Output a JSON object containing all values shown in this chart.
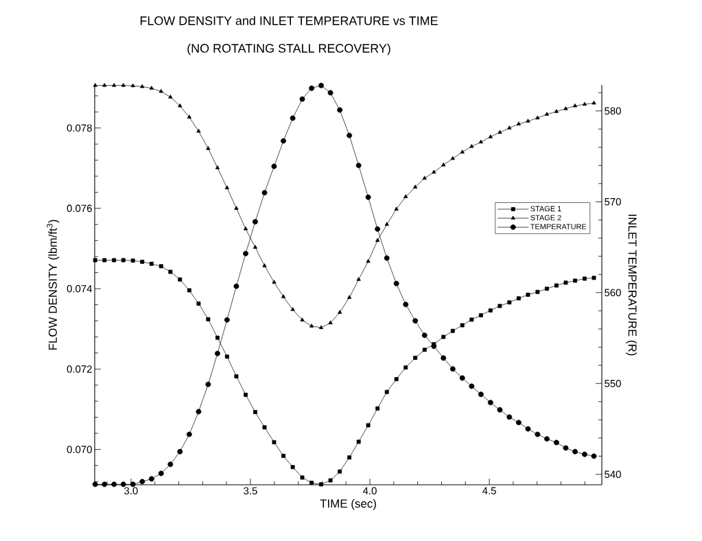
{
  "chart_data": {
    "type": "line",
    "title": "FLOW DENSITY and INLET TEMPERATURE vs TIME",
    "subtitle": "(NO ROTATING STALL RECOVERY)",
    "xlabel": "TIME (sec)",
    "ylabel": "FLOW DENSITY  (lbm/ft$^{3}$)",
    "y2label": "INLET TEMPERATURE  (R)",
    "x": [
      2.85,
      2.889,
      2.929,
      2.968,
      3.008,
      3.047,
      3.086,
      3.126,
      3.165,
      3.205,
      3.244,
      3.283,
      3.323,
      3.362,
      3.402,
      3.441,
      3.48,
      3.52,
      3.559,
      3.599,
      3.638,
      3.677,
      3.717,
      3.756,
      3.796,
      3.835,
      3.874,
      3.914,
      3.953,
      3.993,
      4.032,
      4.071,
      4.111,
      4.15,
      4.19,
      4.229,
      4.268,
      4.308,
      4.347,
      4.387,
      4.426,
      4.465,
      4.505,
      4.544,
      4.584,
      4.623,
      4.662,
      4.702,
      4.741,
      4.781,
      4.82,
      4.859,
      4.899,
      4.938
    ],
    "xlim": [
      2.848,
      4.971
    ],
    "ylim": [
      0.06912,
      0.07907
    ],
    "y2lim": [
      538.85,
      582.85
    ],
    "xticks": [
      {
        "value": 2.9,
        "label": null
      },
      {
        "value": 3,
        "label": "3.0"
      },
      {
        "value": 3.1,
        "label": null
      },
      {
        "value": 3.2,
        "label": null
      },
      {
        "value": 3.3,
        "label": null
      },
      {
        "value": 3.4,
        "label": null
      },
      3.5,
      {
        "value": 3.6,
        "label": null
      },
      {
        "value": 3.7,
        "label": null
      },
      {
        "value": 3.8,
        "label": null
      },
      {
        "value": 3.9,
        "label": null
      },
      {
        "value": 4,
        "label": "4.0"
      },
      {
        "value": 4.1,
        "label": null
      },
      {
        "value": 4.2,
        "label": null
      },
      {
        "value": 4.3,
        "label": null
      },
      {
        "value": 4.4,
        "label": null
      },
      4.5,
      {
        "value": 4.6,
        "label": null
      },
      {
        "value": 4.7,
        "label": null
      },
      {
        "value": 4.8,
        "label": null
      },
      {
        "value": 4.9,
        "label": null
      }
    ],
    "yticks": [
      {
        "value": 0.0692,
        "label": null
      },
      {
        "value": 0.0696,
        "label": null
      },
      {
        "value": 0.07,
        "label": "0.070"
      },
      {
        "value": 0.0704,
        "label": null
      },
      {
        "value": 0.0708,
        "label": null
      },
      {
        "value": 0.0712,
        "label": null
      },
      {
        "value": 0.0716,
        "label": null
      },
      {
        "value": 0.072,
        "label": "0.072"
      },
      {
        "value": 0.0724,
        "label": null
      },
      {
        "value": 0.0728,
        "label": null
      },
      {
        "value": 0.0732,
        "label": null
      },
      {
        "value": 0.0736,
        "label": null
      },
      {
        "value": 0.074,
        "label": "0.074"
      },
      {
        "value": 0.0744,
        "label": null
      },
      {
        "value": 0.0748,
        "label": null
      },
      {
        "value": 0.0752,
        "label": null
      },
      {
        "value": 0.0756,
        "label": null
      },
      {
        "value": 0.076,
        "label": "0.076"
      },
      {
        "value": 0.0764,
        "label": null
      },
      {
        "value": 0.0768,
        "label": null
      },
      {
        "value": 0.0772,
        "label": null
      },
      {
        "value": 0.0776,
        "label": null
      },
      {
        "value": 0.078,
        "label": "0.078"
      },
      {
        "value": 0.0784,
        "label": null
      },
      {
        "value": 0.0788,
        "label": null
      }
    ],
    "y2ticks": [
      540,
      {
        "value": 542,
        "label": null
      },
      {
        "value": 544,
        "label": null
      },
      {
        "value": 546,
        "label": null
      },
      {
        "value": 548,
        "label": null
      },
      550,
      {
        "value": 552,
        "label": null
      },
      {
        "value": 554,
        "label": null
      },
      {
        "value": 556,
        "label": null
      },
      {
        "value": 558,
        "label": null
      },
      560,
      {
        "value": 562,
        "label": null
      },
      {
        "value": 564,
        "label": null
      },
      {
        "value": 566,
        "label": null
      },
      {
        "value": 568,
        "label": null
      },
      570,
      {
        "value": 572,
        "label": null
      },
      {
        "value": 574,
        "label": null
      },
      {
        "value": 576,
        "label": null
      },
      {
        "value": 578,
        "label": null
      },
      580,
      {
        "value": 582,
        "label": null
      }
    ],
    "legend": "right",
    "line_style": "solid",
    "series": [
      {
        "name": "STAGE 1",
        "color": "#000000",
        "marker": "square",
        "values": [
          0.07471,
          0.07471,
          0.07471,
          0.07471,
          0.0747,
          0.07467,
          0.07462,
          0.07456,
          0.07442,
          0.07423,
          0.07396,
          0.07363,
          0.07324,
          0.07278,
          0.07231,
          0.07182,
          0.07136,
          0.07093,
          0.07055,
          0.07018,
          0.06984,
          0.06956,
          0.0693,
          0.06917,
          0.06913,
          0.06923,
          0.06945,
          0.0698,
          0.07019,
          0.0706,
          0.07102,
          0.07143,
          0.07175,
          0.07204,
          0.07228,
          0.07248,
          0.07262,
          0.0728,
          0.07295,
          0.07309,
          0.07323,
          0.07334,
          0.07346,
          0.07357,
          0.07366,
          0.07376,
          0.07385,
          0.07392,
          0.074,
          0.07408,
          0.07415,
          0.0742,
          0.07425,
          0.07427
        ]
      },
      {
        "name": "STAGE 2",
        "color": "#000000",
        "marker": "triangle",
        "values": [
          0.07906,
          0.07906,
          0.07906,
          0.07906,
          0.07905,
          0.07903,
          0.07899,
          0.07891,
          0.07877,
          0.07855,
          0.07827,
          0.07792,
          0.07749,
          0.07701,
          0.07651,
          0.076,
          0.07549,
          0.07503,
          0.07457,
          0.07416,
          0.0738,
          0.07348,
          0.07322,
          0.07307,
          0.07303,
          0.07315,
          0.07341,
          0.07378,
          0.07423,
          0.07468,
          0.0752,
          0.0756,
          0.07598,
          0.07629,
          0.07653,
          0.07675,
          0.0769,
          0.07708,
          0.07724,
          0.0774,
          0.07754,
          0.07765,
          0.07778,
          0.07789,
          0.078,
          0.0781,
          0.07817,
          0.07825,
          0.07834,
          0.07841,
          0.07848,
          0.07855,
          0.07859,
          0.07862
        ]
      },
      {
        "name": "TEMPERATURE",
        "color": "#000000",
        "marker": "circle",
        "axis": "y2",
        "values": [
          538.9,
          538.9,
          538.9,
          538.9,
          538.9,
          539.2,
          539.5,
          540.1,
          541.1,
          542.5,
          544.4,
          546.9,
          549.9,
          553.3,
          557.0,
          560.7,
          564.3,
          567.8,
          571.0,
          573.9,
          576.7,
          579.2,
          581.3,
          582.5,
          582.8,
          582.0,
          580.1,
          577.3,
          574.0,
          570.5,
          567.0,
          563.8,
          561.0,
          558.7,
          556.9,
          555.3,
          554.1,
          552.8,
          551.6,
          550.6,
          549.7,
          548.8,
          547.9,
          547.1,
          546.3,
          545.7,
          545.0,
          544.4,
          543.9,
          543.5,
          542.9,
          542.5,
          542.2,
          542.0
        ]
      }
    ]
  }
}
